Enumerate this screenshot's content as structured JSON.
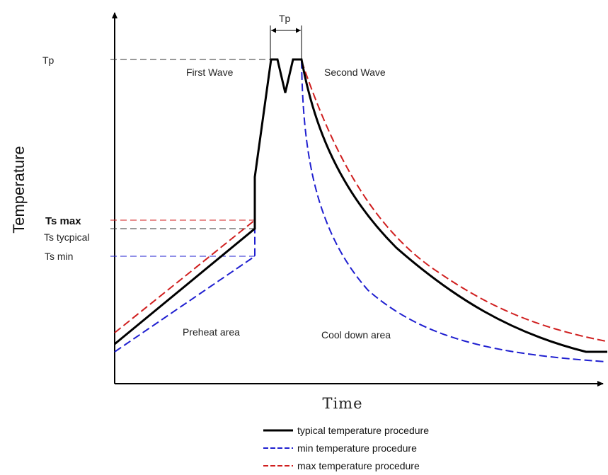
{
  "axes": {
    "y_title": "Temperature",
    "x_title": "Time"
  },
  "y_levels": {
    "tp": "Tp",
    "ts_max": "Ts max",
    "ts_typical": "Ts tycpical",
    "ts_min": "Ts min"
  },
  "dimension": {
    "label": "Tp"
  },
  "regions": {
    "first_wave": "First Wave",
    "second_wave": "Second Wave",
    "preheat": "Preheat area",
    "cool_down": "Cool down area"
  },
  "legend": [
    {
      "label": "typical temperature procedure",
      "color": "#000000",
      "style": "solid"
    },
    {
      "label": "min temperature procedure",
      "color": "#1f1fd0",
      "style": "dashed"
    },
    {
      "label": "max temperature procedure",
      "color": "#d01f1f",
      "style": "dashed"
    }
  ],
  "colors": {
    "typical": "#000000",
    "min": "#1f1fd0",
    "max": "#d01f1f",
    "guide": "#333333"
  }
}
